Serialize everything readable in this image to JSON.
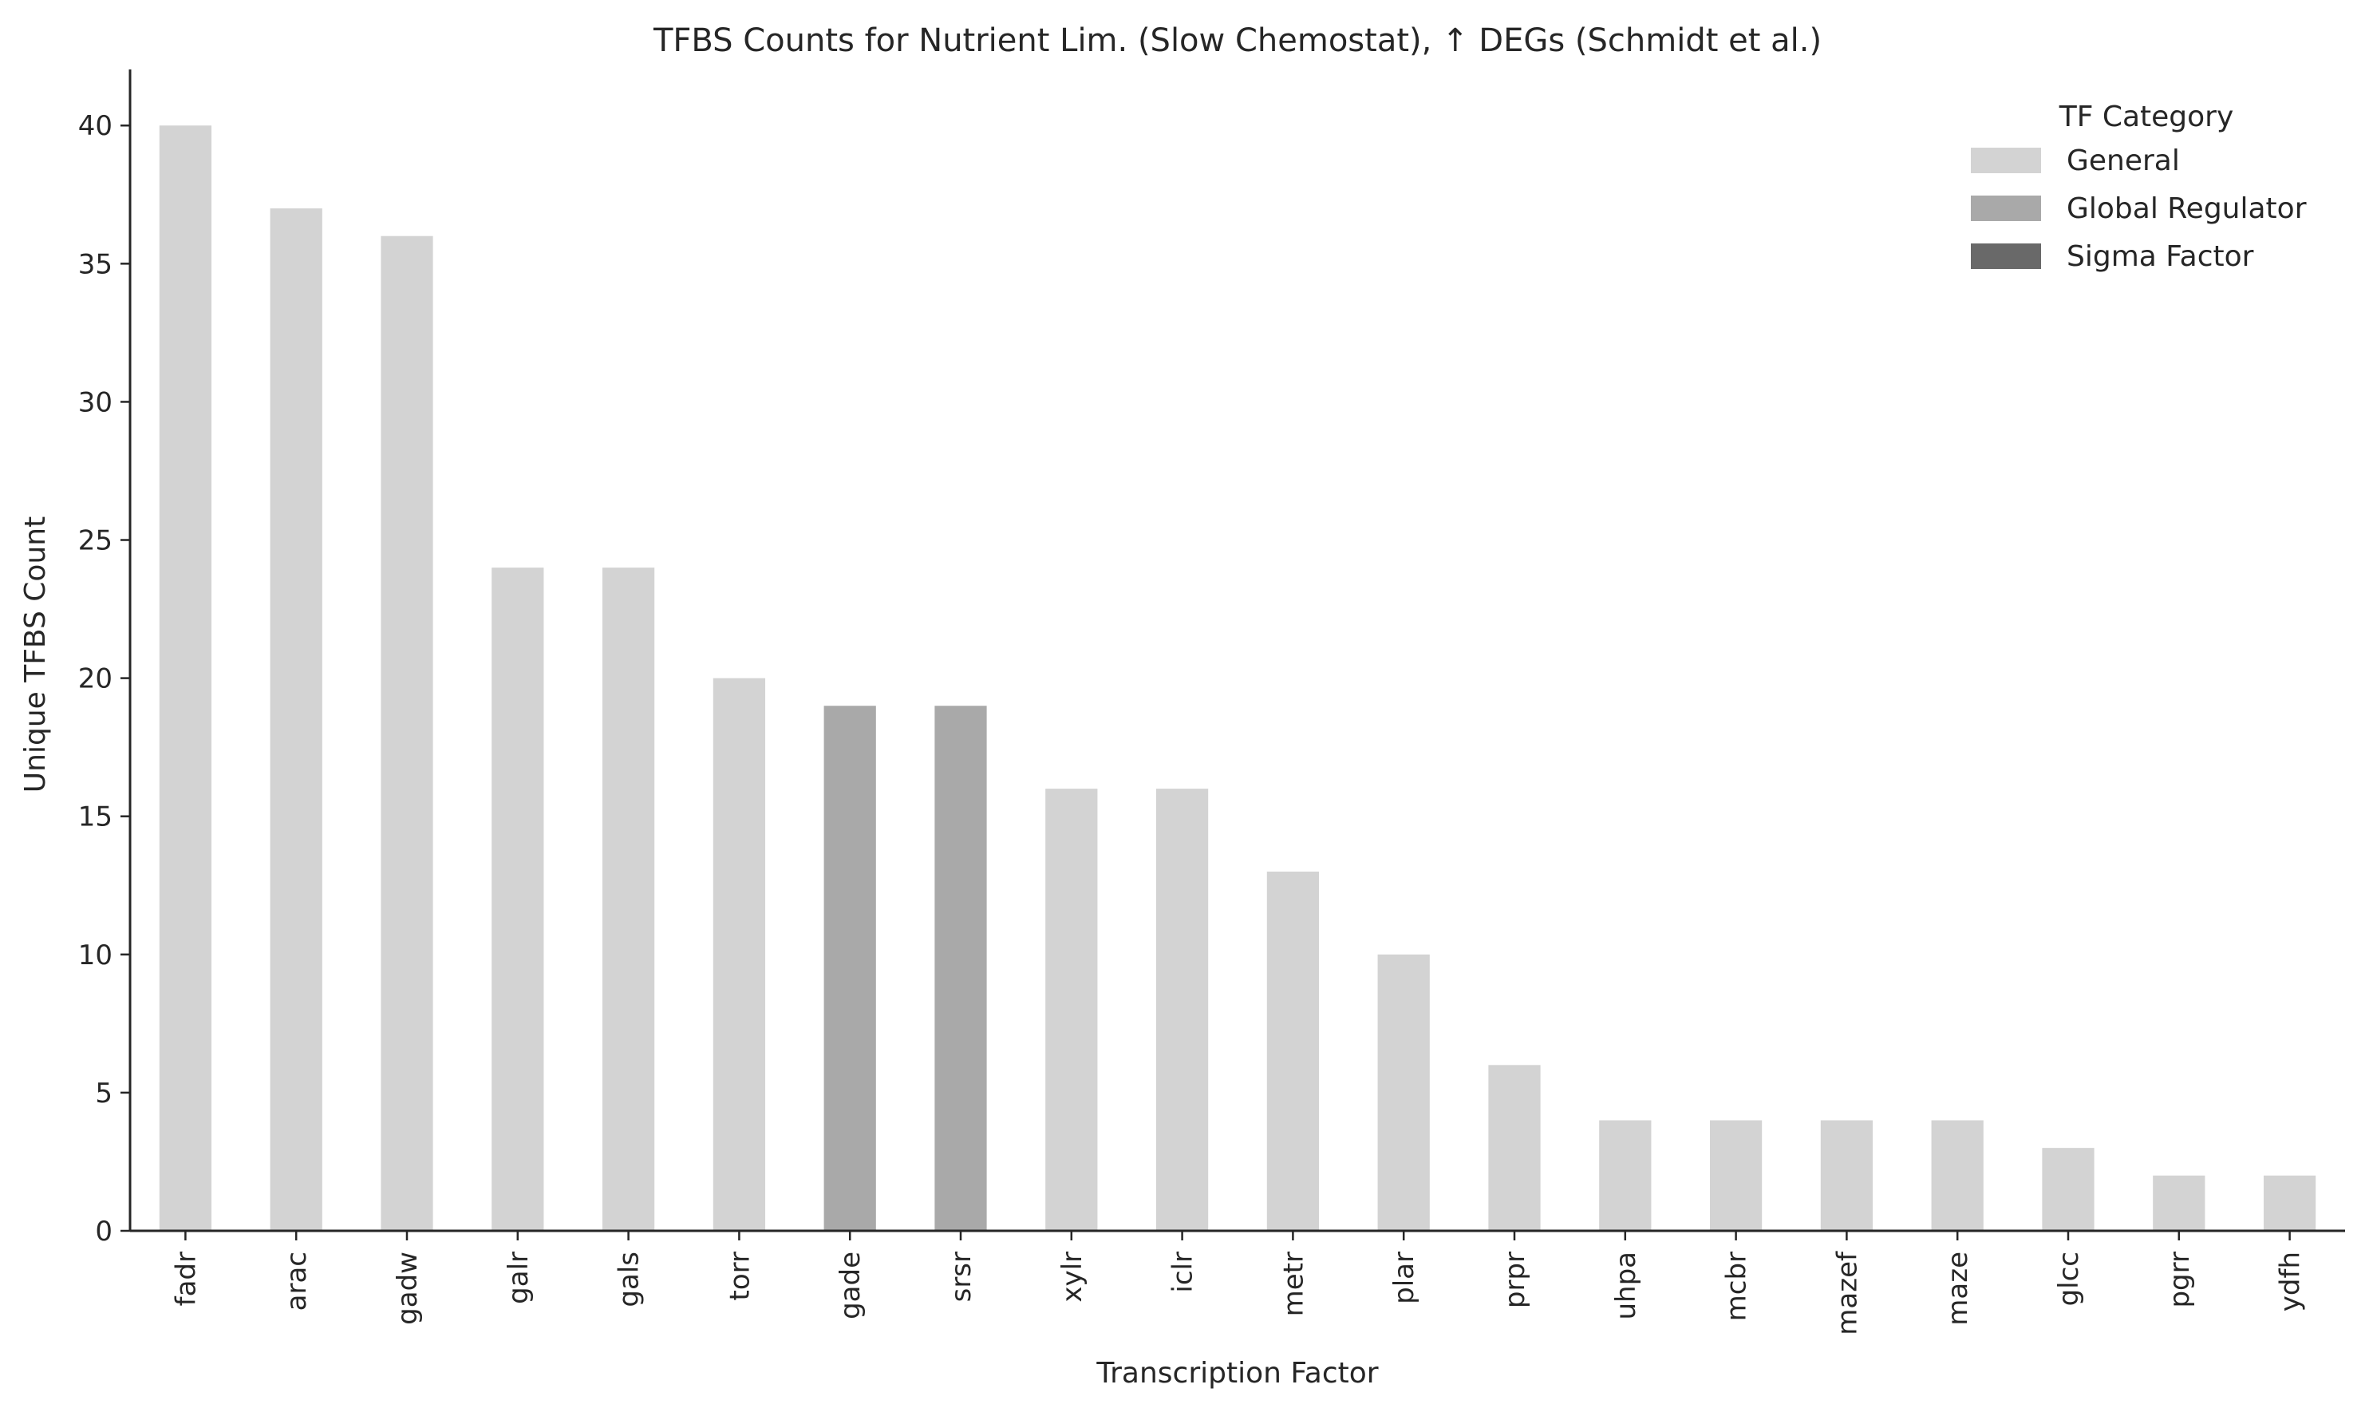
{
  "chart_data": {
    "type": "bar",
    "title": "TFBS Counts for Nutrient Lim. (Slow Chemostat), ↑ DEGs (Schmidt et al.)",
    "xlabel": "Transcription Factor",
    "ylabel": "Unique TFBS Count",
    "ylim": [
      0,
      42
    ],
    "yticks": [
      0,
      5,
      10,
      15,
      20,
      25,
      30,
      35,
      40
    ],
    "categories": [
      "fadr",
      "arac",
      "gadw",
      "galr",
      "gals",
      "torr",
      "gade",
      "srsr",
      "xylr",
      "iclr",
      "metr",
      "plar",
      "prpr",
      "uhpa",
      "mcbr",
      "mazef",
      "maze",
      "glcc",
      "pgrr",
      "ydfh"
    ],
    "values": [
      40,
      37,
      36,
      24,
      24,
      20,
      19,
      19,
      16,
      16,
      13,
      10,
      6,
      4,
      4,
      4,
      4,
      3,
      2,
      2
    ],
    "bar_category": [
      "General",
      "General",
      "General",
      "General",
      "General",
      "General",
      "Global Regulator",
      "Global Regulator",
      "General",
      "General",
      "General",
      "General",
      "General",
      "General",
      "General",
      "General",
      "General",
      "General",
      "General",
      "General"
    ],
    "grid": false,
    "legend": {
      "title": "TF Category",
      "placement": "top-right",
      "entries": [
        {
          "label": "General",
          "color": "#d3d3d3"
        },
        {
          "label": "Global Regulator",
          "color": "#a9a9a9"
        },
        {
          "label": "Sigma Factor",
          "color": "#696969"
        }
      ]
    }
  }
}
